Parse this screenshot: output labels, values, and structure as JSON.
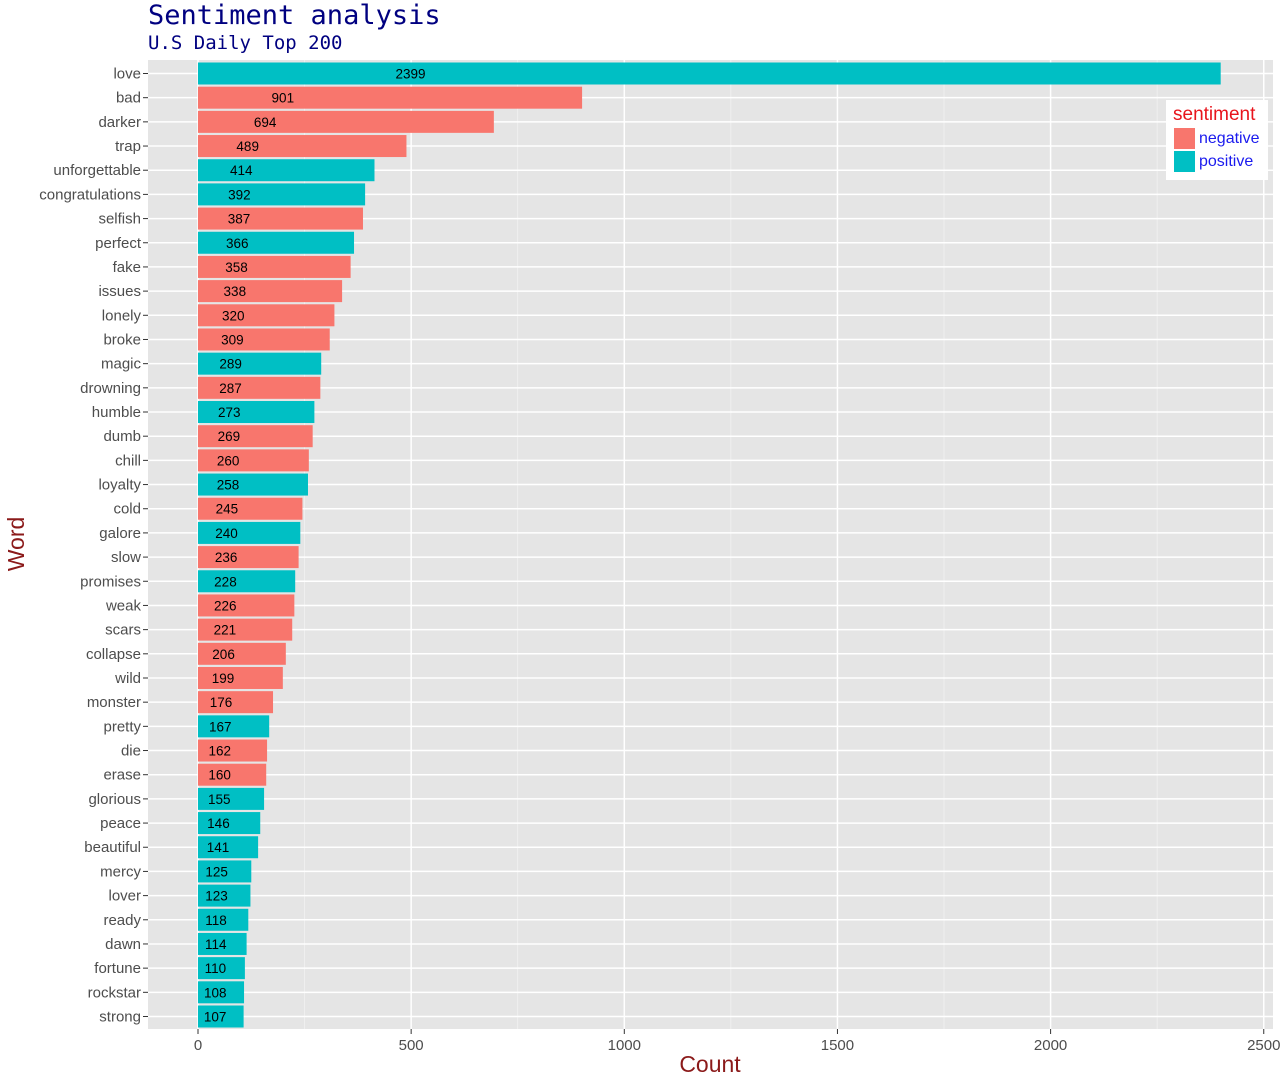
{
  "title": "Sentiment analysis",
  "subtitle": "U.S Daily Top 200",
  "legend": {
    "title": "sentiment",
    "items": [
      {
        "label": "negative",
        "color": "#F8766D"
      },
      {
        "label": "positive",
        "color": "#00BFC4"
      }
    ]
  },
  "chart_data": {
    "type": "bar",
    "orientation": "horizontal",
    "xlabel": "Count",
    "ylabel": "Word",
    "xlim": [
      0,
      2500
    ],
    "xticks": [
      0,
      500,
      1000,
      1500,
      2000,
      2500
    ],
    "grid": true,
    "legend_position": "top-right",
    "categories": [
      "love",
      "bad",
      "darker",
      "trap",
      "unforgettable",
      "congratulations",
      "selfish",
      "perfect",
      "fake",
      "issues",
      "lonely",
      "broke",
      "magic",
      "drowning",
      "humble",
      "dumb",
      "chill",
      "loyalty",
      "cold",
      "galore",
      "slow",
      "promises",
      "weak",
      "scars",
      "collapse",
      "wild",
      "monster",
      "pretty",
      "die",
      "erase",
      "glorious",
      "peace",
      "beautiful",
      "mercy",
      "lover",
      "ready",
      "dawn",
      "fortune",
      "rockstar",
      "strong"
    ],
    "values": [
      2399,
      901,
      694,
      489,
      414,
      392,
      387,
      366,
      358,
      338,
      320,
      309,
      289,
      287,
      273,
      269,
      260,
      258,
      245,
      240,
      236,
      228,
      226,
      221,
      206,
      199,
      176,
      167,
      162,
      160,
      155,
      146,
      141,
      125,
      123,
      118,
      114,
      110,
      108,
      107
    ],
    "sentiment": [
      "positive",
      "negative",
      "negative",
      "negative",
      "positive",
      "positive",
      "negative",
      "positive",
      "negative",
      "negative",
      "negative",
      "negative",
      "positive",
      "negative",
      "positive",
      "negative",
      "negative",
      "positive",
      "negative",
      "positive",
      "negative",
      "positive",
      "negative",
      "negative",
      "negative",
      "negative",
      "negative",
      "positive",
      "negative",
      "negative",
      "positive",
      "positive",
      "positive",
      "positive",
      "positive",
      "positive",
      "positive",
      "positive",
      "positive",
      "positive"
    ]
  }
}
